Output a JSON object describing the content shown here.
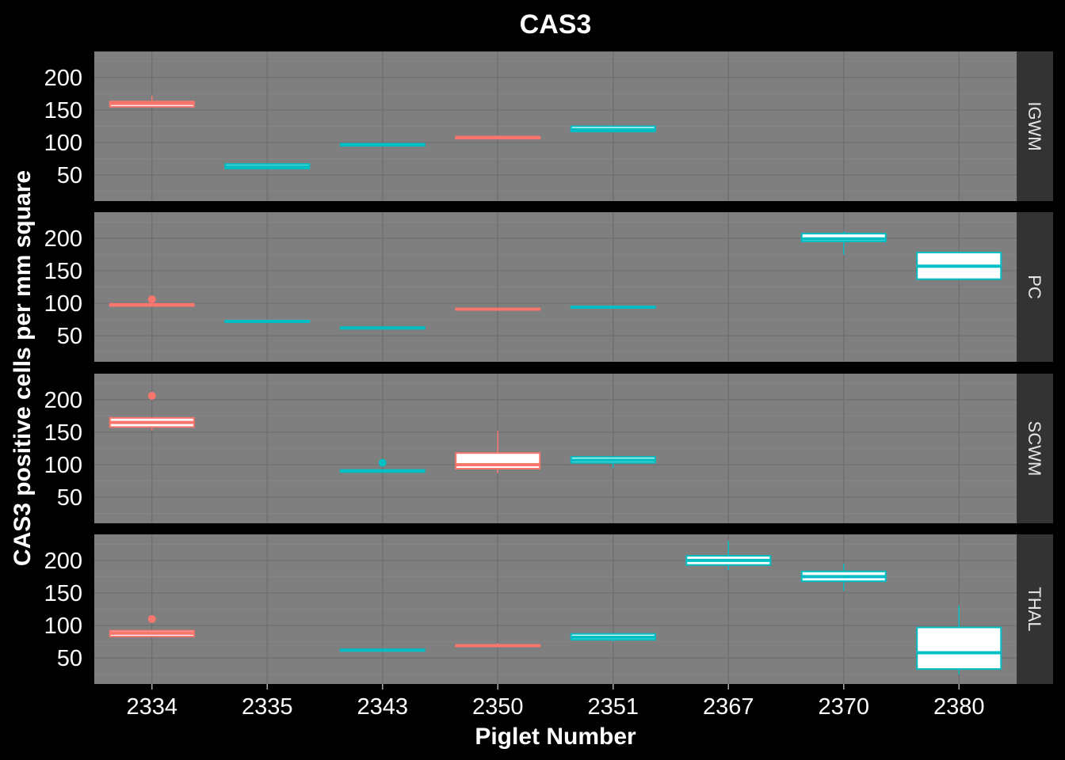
{
  "chart_data": {
    "type": "box",
    "title": "CAS3",
    "xlabel": "Piglet Number",
    "ylabel": "CAS3 positive cells per mm square",
    "categories": [
      "2334",
      "2335",
      "2343",
      "2350",
      "2351",
      "2367",
      "2370",
      "2380"
    ],
    "ylim": [
      10,
      240
    ],
    "yticks": [
      "50",
      "100",
      "150",
      "200"
    ],
    "grid": true,
    "colors": {
      "group_a": "#F8766D",
      "group_b": "#00BFC4"
    },
    "facets": [
      {
        "name": "IGWM",
        "boxes": [
          {
            "x": "2334",
            "group": "group_a",
            "q1": 155,
            "median": 160,
            "q3": 163,
            "low": 155,
            "high": 172,
            "outliers": []
          },
          {
            "x": "2335",
            "group": "group_b",
            "q1": 60,
            "median": 63,
            "q3": 67,
            "low": 60,
            "high": 67,
            "outliers": []
          },
          {
            "x": "2343",
            "group": "group_b",
            "q1": 95,
            "median": 97,
            "q3": 98,
            "low": 95,
            "high": 98,
            "outliers": []
          },
          {
            "x": "2350",
            "group": "group_a",
            "q1": 106,
            "median": 108,
            "q3": 109,
            "low": 106,
            "high": 109,
            "outliers": []
          },
          {
            "x": "2351",
            "group": "group_b",
            "q1": 117,
            "median": 120,
            "q3": 125,
            "low": 117,
            "high": 125,
            "outliers": []
          }
        ]
      },
      {
        "name": "PC",
        "boxes": [
          {
            "x": "2334",
            "group": "group_a",
            "q1": 96,
            "median": 97,
            "q3": 99,
            "low": 96,
            "high": 99,
            "outliers": [
              106
            ]
          },
          {
            "x": "2335",
            "group": "group_b",
            "q1": 71,
            "median": 72,
            "q3": 73,
            "low": 71,
            "high": 73,
            "outliers": []
          },
          {
            "x": "2343",
            "group": "group_b",
            "q1": 61,
            "median": 62,
            "q3": 63,
            "low": 61,
            "high": 63,
            "outliers": []
          },
          {
            "x": "2350",
            "group": "group_a",
            "q1": 90,
            "median": 91,
            "q3": 92,
            "low": 90,
            "high": 92,
            "outliers": []
          },
          {
            "x": "2351",
            "group": "group_b",
            "q1": 93,
            "median": 94,
            "q3": 95,
            "low": 93,
            "high": 95,
            "outliers": []
          },
          {
            "x": "2370",
            "group": "group_b",
            "q1": 195,
            "median": 199,
            "q3": 207,
            "low": 175,
            "high": 210,
            "outliers": []
          },
          {
            "x": "2380",
            "group": "group_b",
            "q1": 137,
            "median": 157,
            "q3": 178,
            "low": 137,
            "high": 178,
            "outliers": []
          }
        ]
      },
      {
        "name": "SCWM",
        "boxes": [
          {
            "x": "2334",
            "group": "group_a",
            "q1": 158,
            "median": 165,
            "q3": 172,
            "low": 153,
            "high": 172,
            "outliers": [
              206
            ]
          },
          {
            "x": "2343",
            "group": "group_b",
            "q1": 89,
            "median": 90,
            "q3": 92,
            "low": 89,
            "high": 92,
            "outliers": [
              103
            ]
          },
          {
            "x": "2350",
            "group": "group_a",
            "q1": 94,
            "median": 100,
            "q3": 118,
            "low": 87,
            "high": 152,
            "outliers": []
          },
          {
            "x": "2351",
            "group": "group_b",
            "q1": 103,
            "median": 107,
            "q3": 112,
            "low": 95,
            "high": 112,
            "outliers": []
          }
        ]
      },
      {
        "name": "THAL",
        "boxes": [
          {
            "x": "2334",
            "group": "group_a",
            "q1": 83,
            "median": 88,
            "q3": 92,
            "low": 83,
            "high": 92,
            "outliers": [
              110
            ]
          },
          {
            "x": "2343",
            "group": "group_b",
            "q1": 61,
            "median": 62,
            "q3": 63,
            "low": 61,
            "high": 63,
            "outliers": []
          },
          {
            "x": "2350",
            "group": "group_a",
            "q1": 68,
            "median": 69,
            "q3": 70,
            "low": 68,
            "high": 73,
            "outliers": []
          },
          {
            "x": "2351",
            "group": "group_b",
            "q1": 78,
            "median": 82,
            "q3": 87,
            "low": 75,
            "high": 87,
            "outliers": []
          },
          {
            "x": "2367",
            "group": "group_b",
            "q1": 193,
            "median": 200,
            "q3": 207,
            "low": 185,
            "high": 230,
            "outliers": []
          },
          {
            "x": "2370",
            "group": "group_b",
            "q1": 168,
            "median": 175,
            "q3": 183,
            "low": 153,
            "high": 195,
            "outliers": []
          },
          {
            "x": "2380",
            "group": "group_b",
            "q1": 33,
            "median": 58,
            "q3": 97,
            "low": 25,
            "high": 130,
            "outliers": []
          }
        ]
      }
    ]
  }
}
